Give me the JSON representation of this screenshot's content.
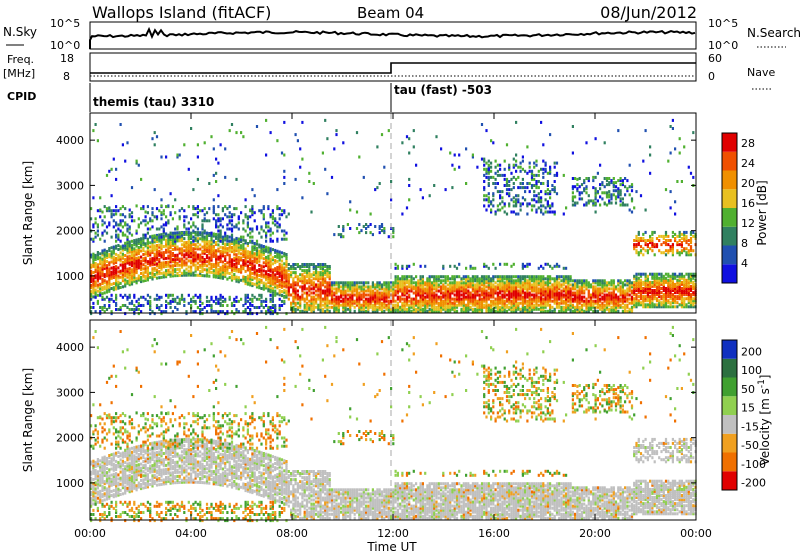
{
  "header": {
    "station": "Wallops Island (fitACF)",
    "beam": "Beam 04",
    "date": "08/Jun/2012"
  },
  "noise_panel": {
    "left_label": "N.Sky",
    "left_ticks": [
      "10^5",
      "10^0"
    ],
    "right_label": "N.Search",
    "right_ticks": [
      "10^5",
      "10^0"
    ]
  },
  "freq_panel": {
    "left_label_1": "Freq.",
    "left_label_2": "[MHz]",
    "left_ticks": [
      "18",
      "8"
    ],
    "right_label": "Nave",
    "right_ticks": [
      "60",
      "0"
    ]
  },
  "cpid_panel": {
    "label": "CPID",
    "segments": [
      "themis (tau) 3310",
      "tau (fast) -503"
    ]
  },
  "chart_data": [
    {
      "type": "heatmap",
      "title": "Power",
      "xlabel": "Time UT",
      "ylabel": "Slant Range [km]",
      "x_ticks": [
        "00:00",
        "04:00",
        "08:00",
        "12:00",
        "16:00",
        "20:00",
        "00:00"
      ],
      "x_range_hours": [
        0,
        24
      ],
      "y_ticks": [
        1000,
        2000,
        3000,
        4000
      ],
      "ylim": [
        180,
        4600
      ],
      "colorbar_label": "Power [dB]",
      "colorbar_ticks": [
        4,
        8,
        12,
        16,
        20,
        24,
        28
      ],
      "colorbar_range": [
        0,
        30
      ],
      "colors": [
        "#1010e0",
        "#2050b0",
        "#308060",
        "#50b030",
        "#e8c020",
        "#f09000",
        "#f05000",
        "#e00000"
      ],
      "regions": [
        {
          "t": [
            0,
            7.8
          ],
          "r_center": "900+500*sin",
          "value": 22,
          "desc": "dense band"
        },
        {
          "t": [
            8.5,
            24
          ],
          "r": [
            250,
            1000
          ],
          "value": 26
        }
      ]
    },
    {
      "type": "heatmap",
      "title": "Velocity",
      "xlabel": "Time UT",
      "ylabel": "Slant Range [km]",
      "x_ticks": [
        "00:00",
        "04:00",
        "08:00",
        "12:00",
        "16:00",
        "20:00",
        "00:00"
      ],
      "x_range_hours": [
        0,
        24
      ],
      "y_ticks": [
        1000,
        2000,
        3000,
        4000
      ],
      "ylim": [
        180,
        4600
      ],
      "colorbar_label": "Velocity [m s^-1]",
      "colorbar_ticks": [
        "200",
        "100",
        "50",
        "15",
        "-15",
        "-50",
        "-100",
        "-200"
      ],
      "colors": [
        "#1030c0",
        "#2c7040",
        "#40a030",
        "#90d050",
        "#c0c0c0",
        "#f0a020",
        "#f07000",
        "#e00000"
      ]
    }
  ],
  "axis_title": "Time UT"
}
